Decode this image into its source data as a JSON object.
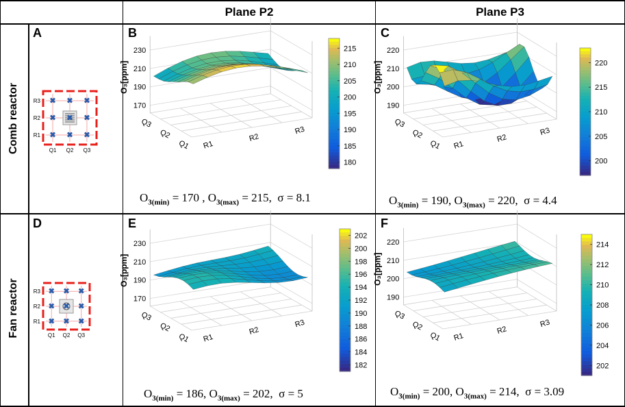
{
  "headers": {
    "col2": "Plane P2",
    "col3": "Plane P3"
  },
  "rows": [
    {
      "label": "Comb reactor"
    },
    {
      "label": "Fan reactor"
    }
  ],
  "panels": {
    "A": {
      "letter": "A"
    },
    "B": {
      "letter": "B"
    },
    "C": {
      "letter": "C"
    },
    "D": {
      "letter": "D"
    },
    "E": {
      "letter": "E"
    },
    "F": {
      "letter": "F"
    }
  },
  "reactor_diagram": {
    "row_labels": [
      "R3",
      "R2",
      "R1"
    ],
    "col_labels": [
      "Q1",
      "Q2",
      "Q3"
    ],
    "colors": {
      "frame": "#e8201c",
      "marker": "#2a5caa",
      "grid": "#f4a6a6"
    }
  },
  "chart_data": [
    {
      "panel": "B",
      "type": "surface",
      "zlabel": "O₃[ppm]",
      "z_ticks": [
        "230",
        "210",
        "190",
        "170"
      ],
      "x_ticks": [
        "Q3",
        "Q2",
        "Q1"
      ],
      "y_ticks": [
        "R1",
        "R2",
        "R3"
      ],
      "colorbar_ticks": [
        "215",
        "210",
        "205",
        "200",
        "195",
        "190",
        "185",
        "180"
      ],
      "colorbar_range": [
        178,
        218
      ],
      "stats": {
        "min_label": "O",
        "min_sub": "3(min)",
        "min_value": "= 170 ,",
        "max_label": "O",
        "max_sub": "3(max)",
        "max_value": "= 215,",
        "sigma": "σ = 8.1"
      }
    },
    {
      "panel": "C",
      "type": "surface",
      "zlabel": "O₃[ppm]",
      "z_ticks": [
        "220",
        "210",
        "200",
        "190"
      ],
      "x_ticks": [
        "Q3",
        "Q2",
        "Q1"
      ],
      "y_ticks": [
        "R1",
        "R2",
        "R3"
      ],
      "colorbar_ticks": [
        "220",
        "215",
        "210",
        "205",
        "200"
      ],
      "colorbar_range": [
        197,
        223
      ],
      "stats": {
        "min_label": "O",
        "min_sub": "3(min)",
        "min_value": "= 190,",
        "max_label": "O",
        "max_sub": "3(max)",
        "max_value": "= 220,",
        "sigma": "σ = 4.4"
      }
    },
    {
      "panel": "E",
      "type": "surface",
      "zlabel": "O₃[ppm]",
      "z_ticks": [
        "230",
        "210",
        "190",
        "170"
      ],
      "x_ticks": [
        "Q3",
        "Q2",
        "Q1"
      ],
      "y_ticks": [
        "R1",
        "R2",
        "R3"
      ],
      "colorbar_ticks": [
        "202",
        "200",
        "198",
        "196",
        "194",
        "192",
        "190",
        "188",
        "186",
        "184",
        "182"
      ],
      "colorbar_range": [
        181,
        203
      ],
      "stats": {
        "min_label": "O",
        "min_sub": "3(min)",
        "min_value": "= 186,",
        "max_label": "O",
        "max_sub": "3(max)",
        "max_value": "= 202,",
        "sigma": "σ = 5"
      }
    },
    {
      "panel": "F",
      "type": "surface",
      "zlabel": "O₃[ppm]",
      "z_ticks": [
        "220",
        "210",
        "200",
        "190"
      ],
      "x_ticks": [
        "Q3",
        "Q2",
        "Q1"
      ],
      "y_ticks": [
        "R1",
        "R2",
        "R3"
      ],
      "colorbar_ticks": [
        "214",
        "212",
        "210",
        "208",
        "206",
        "204",
        "202"
      ],
      "colorbar_range": [
        201,
        215
      ],
      "stats": {
        "min_label": "O",
        "min_sub": "3(min)",
        "min_value": "= 200,",
        "max_label": "O",
        "max_sub": "3(max)",
        "max_value": "= 214,",
        "sigma": "σ = 3.09"
      }
    }
  ]
}
